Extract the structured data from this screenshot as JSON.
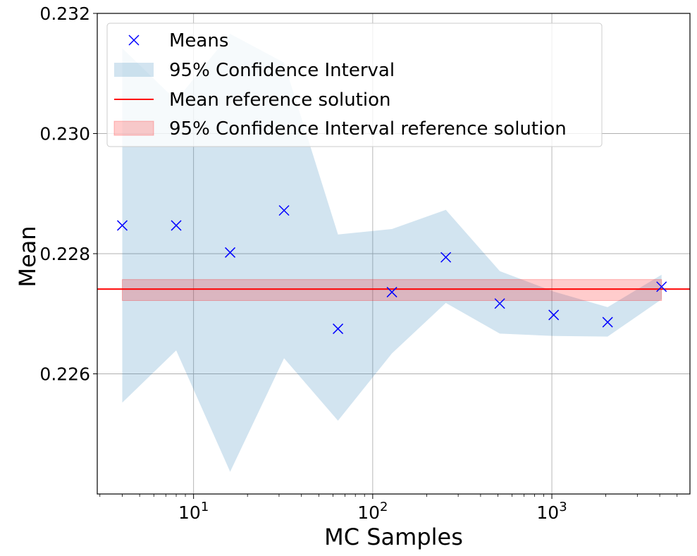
{
  "chart_data": {
    "type": "scatter",
    "xscale": "log",
    "xlabel": "MC Samples",
    "ylabel": "Mean",
    "xlim": [
      2.9,
      5900
    ],
    "ylim": [
      0.224,
      0.232
    ],
    "grid": true,
    "legend_position": "top-left",
    "xticks": [
      {
        "value": 10,
        "base": "10",
        "exp": "1"
      },
      {
        "value": 100,
        "base": "10",
        "exp": "2"
      },
      {
        "value": 1000,
        "base": "10",
        "exp": "3"
      }
    ],
    "yticks": [
      {
        "value": 0.226,
        "label": "0.226"
      },
      {
        "value": 0.228,
        "label": "0.228"
      },
      {
        "value": 0.23,
        "label": "0.230"
      },
      {
        "value": 0.232,
        "label": "0.232"
      }
    ],
    "series": [
      {
        "name": "Means",
        "kind": "markers",
        "marker": "x",
        "color": "#0000ff",
        "x": [
          4,
          8,
          16,
          32,
          64,
          128,
          256,
          512,
          1024,
          2048,
          4096
        ],
        "y": [
          0.22847,
          0.22847,
          0.22802,
          0.22872,
          0.22675,
          0.22736,
          0.22794,
          0.22717,
          0.22698,
          0.22686,
          0.22745
        ]
      },
      {
        "name": "95% Confidence Interval",
        "kind": "band",
        "color": "#1f77b4",
        "opacity": 0.2,
        "x": [
          4,
          8,
          16,
          32,
          64,
          128,
          256,
          512,
          1024,
          2048,
          4096
        ],
        "lower": [
          0.22552,
          0.22639,
          0.22437,
          0.22626,
          0.22522,
          0.22634,
          0.22718,
          0.22667,
          0.22663,
          0.22662,
          0.22724
        ],
        "upper": [
          0.23142,
          0.23055,
          0.23166,
          0.23118,
          0.22832,
          0.22841,
          0.22873,
          0.22771,
          0.22737,
          0.22711,
          0.22765
        ]
      },
      {
        "name": "Mean reference solution",
        "kind": "hline",
        "color": "#ff0000",
        "y": 0.22741
      },
      {
        "name": "95% Confidence Interval reference solution",
        "kind": "hband",
        "color": "#ff0000",
        "opacity": 0.2,
        "x": [
          4,
          4096
        ],
        "lower": 0.22722,
        "upper": 0.22757
      }
    ]
  }
}
